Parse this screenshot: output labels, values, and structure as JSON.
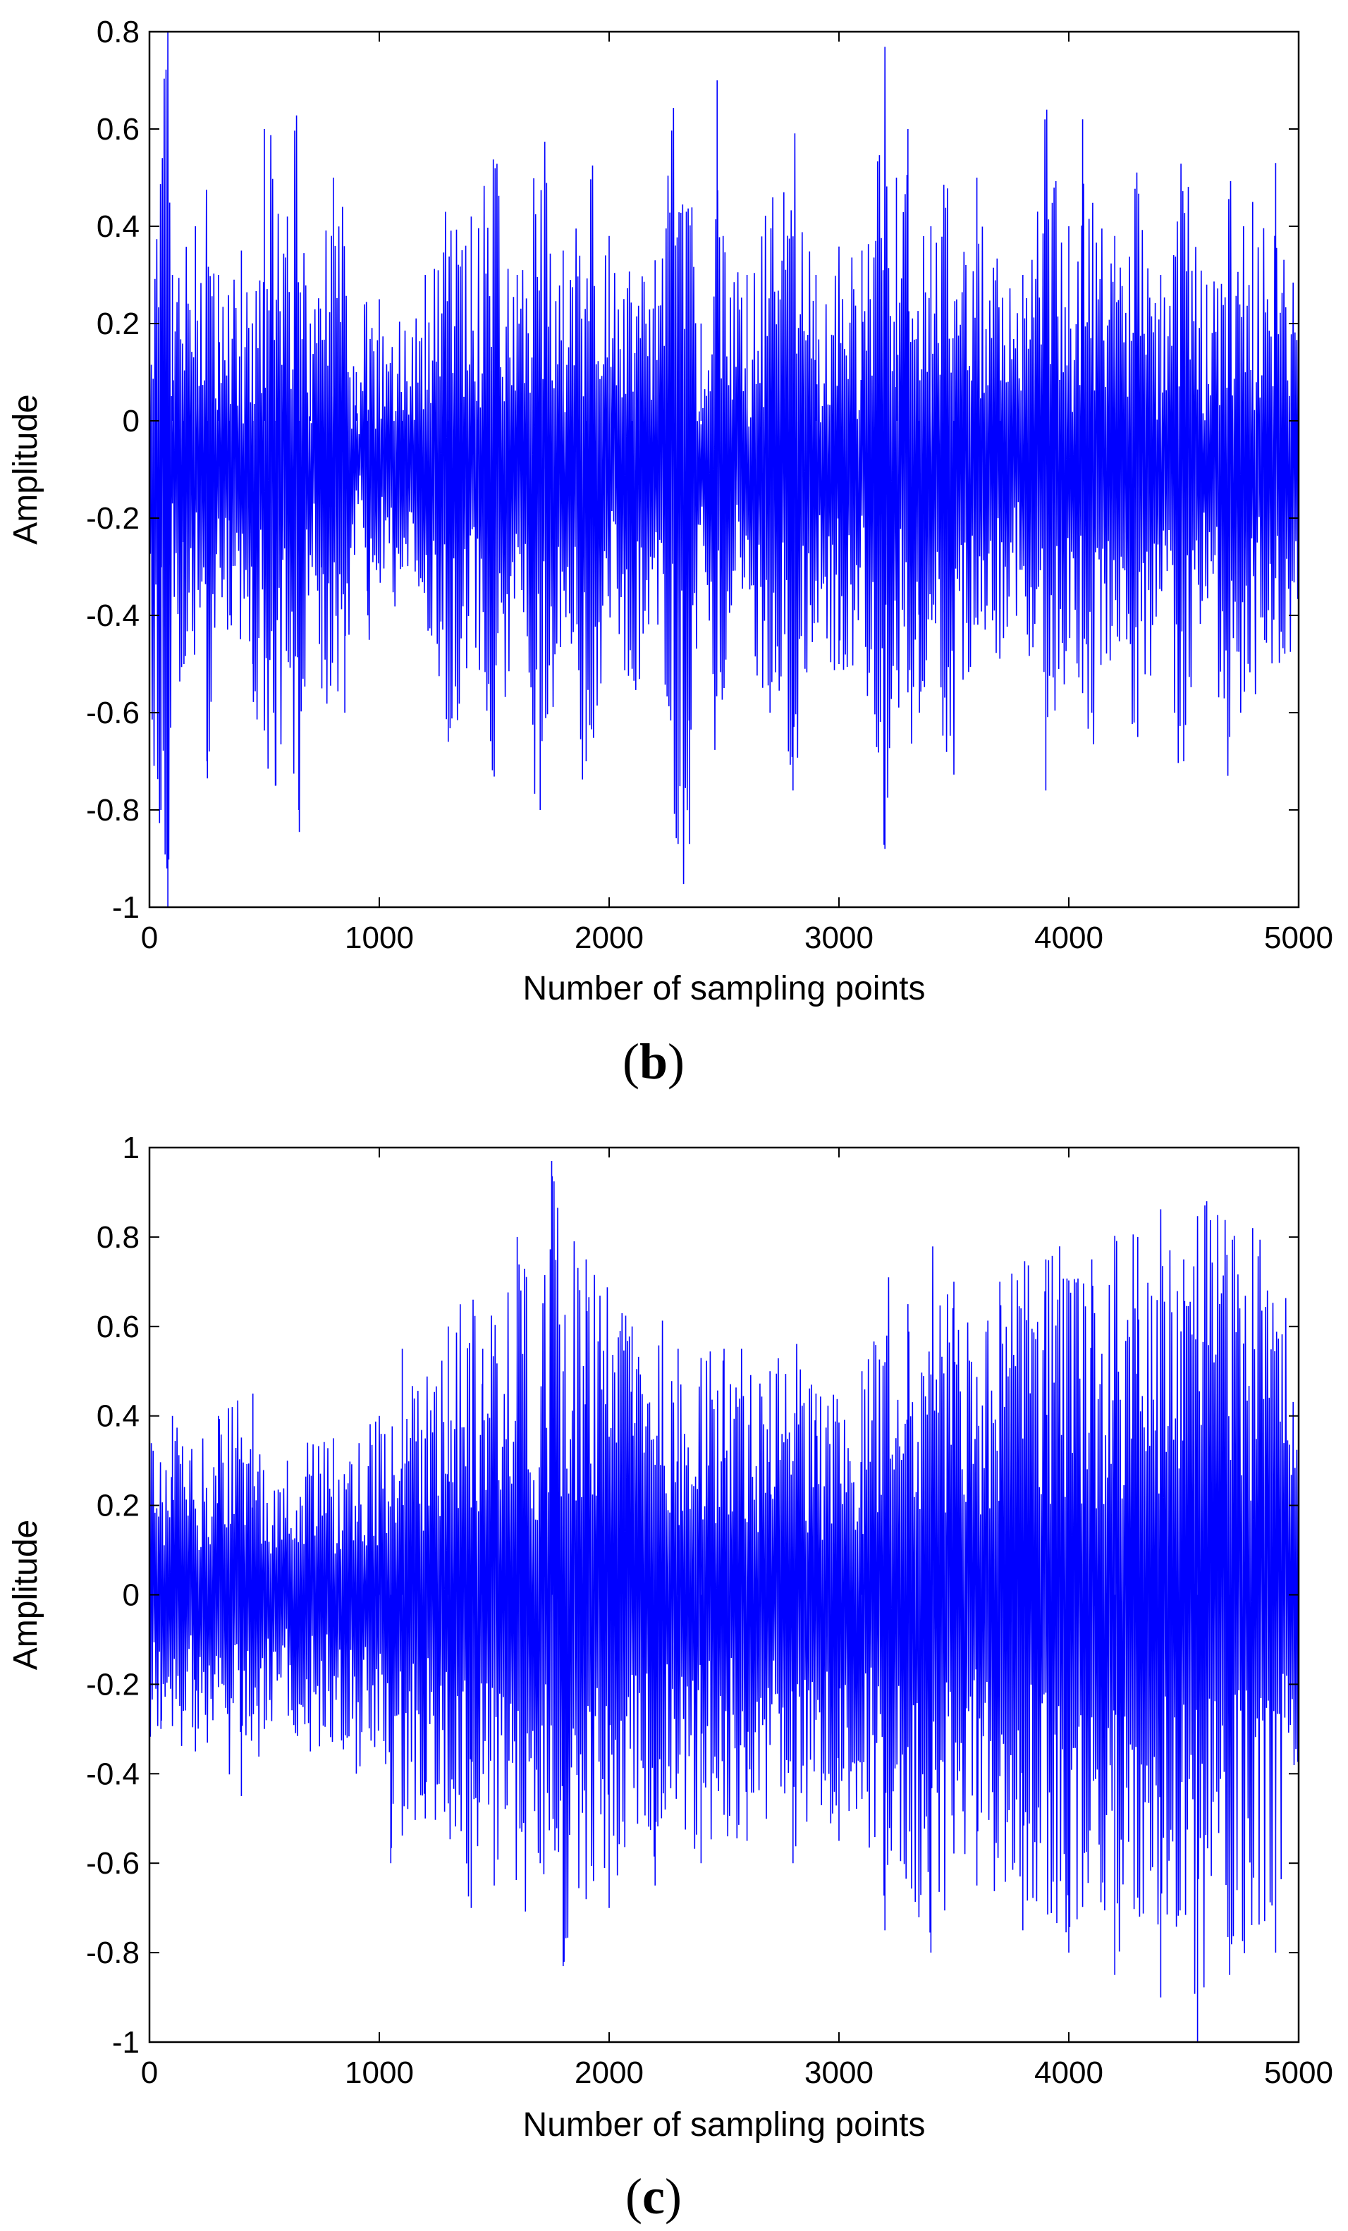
{
  "chart_data": [
    {
      "type": "line",
      "panel_label": {
        "open": "(",
        "letter": "b",
        "close": ")"
      },
      "xlabel": "Number of sampling points",
      "ylabel": "Amplitude",
      "xlim": [
        0,
        5000
      ],
      "ylim": [
        -1,
        0.8
      ],
      "x_ticks": [
        "0",
        "1000",
        "2000",
        "3000",
        "4000",
        "5000"
      ],
      "y_ticks": [
        "-1",
        "-0.8",
        "-0.6",
        "-0.4",
        "-0.2",
        "0",
        "0.2",
        "0.4",
        "0.6",
        "0.8"
      ],
      "x_tick_values": [
        0,
        1000,
        2000,
        3000,
        4000,
        5000
      ],
      "y_tick_values": [
        -1,
        -0.8,
        -0.6,
        -0.4,
        -0.2,
        0,
        0.2,
        0.4,
        0.6,
        0.8
      ],
      "grid": false,
      "line_color": "#0000ff",
      "series": [
        {
          "x": [
            0,
            50,
            80,
            100,
            150,
            200,
            250,
            300,
            350,
            400,
            450,
            500,
            550,
            600,
            650,
            700,
            750,
            800,
            850,
            900,
            950,
            1000,
            1100,
            1200,
            1300,
            1400,
            1500,
            1600,
            1700,
            1800,
            1900,
            2000,
            2100,
            2200,
            2300,
            2350,
            2400,
            2470,
            2500,
            2600,
            2700,
            2760,
            2800,
            2900,
            3000,
            3100,
            3200,
            3250,
            3300,
            3350,
            3400,
            3500,
            3600,
            3700,
            3800,
            3900,
            4000,
            4060,
            4100,
            4200,
            4300,
            4400,
            4500,
            4600,
            4700,
            4800,
            4900,
            5000
          ],
          "y": [
            -0.6,
            -0.8,
            -1.0,
            0.3,
            -0.5,
            0.4,
            -0.7,
            0.3,
            -0.4,
            0.35,
            -0.5,
            0.6,
            -0.75,
            0.42,
            -0.8,
            0.2,
            -0.55,
            0.5,
            -0.6,
            0.1,
            -0.4,
            0.25,
            -0.3,
            0.3,
            -0.66,
            0.42,
            -0.7,
            0.3,
            -0.8,
            0.35,
            -0.7,
            0.38,
            -0.5,
            0.33,
            -0.87,
            -0.87,
            0.2,
            0.7,
            -0.5,
            0.3,
            -0.6,
            0.47,
            -0.76,
            0.3,
            -0.5,
            0.35,
            -0.88,
            0.5,
            0.6,
            -0.6,
            0.4,
            -0.7,
            0.5,
            -0.4,
            0.3,
            -0.76,
            0.4,
            0.62,
            -0.6,
            0.38,
            -0.65,
            0.3,
            -0.7,
            0.28,
            -0.65,
            0.45,
            0.53,
            -0.4
          ]
        }
      ]
    },
    {
      "type": "line",
      "panel_label": {
        "open": "(",
        "letter": "c",
        "close": ")"
      },
      "xlabel": "Number of sampling points",
      "ylabel": "Amplitude",
      "xlim": [
        0,
        5000
      ],
      "ylim": [
        -1,
        1
      ],
      "x_ticks": [
        "0",
        "1000",
        "2000",
        "3000",
        "4000",
        "5000"
      ],
      "y_ticks": [
        "-1",
        "-0.8",
        "-0.6",
        "-0.4",
        "-0.2",
        "0",
        "0.2",
        "0.4",
        "0.6",
        "0.8",
        "1"
      ],
      "x_tick_values": [
        0,
        1000,
        2000,
        3000,
        4000,
        5000
      ],
      "y_tick_values": [
        -1,
        -0.8,
        -0.6,
        -0.4,
        -0.2,
        0,
        0.2,
        0.4,
        0.6,
        0.8,
        1
      ],
      "grid": false,
      "line_color": "#0000ff",
      "series": [
        {
          "x": [
            0,
            50,
            100,
            200,
            300,
            400,
            450,
            500,
            600,
            700,
            800,
            900,
            1000,
            1050,
            1100,
            1200,
            1300,
            1400,
            1450,
            1500,
            1600,
            1700,
            1750,
            1800,
            1900,
            2000,
            2100,
            2200,
            2300,
            2400,
            2500,
            2600,
            2700,
            2800,
            2900,
            3000,
            3100,
            3200,
            3300,
            3400,
            3500,
            3600,
            3700,
            3800,
            3900,
            4000,
            4100,
            4200,
            4300,
            4400,
            4500,
            4560,
            4600,
            4700,
            4800,
            4900,
            5000
          ],
          "y": [
            0.45,
            -0.3,
            0.4,
            -0.35,
            0.4,
            -0.45,
            0.45,
            -0.3,
            0.3,
            -0.35,
            0.35,
            -0.4,
            0.4,
            -0.6,
            0.55,
            -0.5,
            0.6,
            -0.7,
            0.55,
            -0.65,
            0.8,
            -0.6,
            0.97,
            -0.83,
            0.75,
            -0.7,
            0.6,
            -0.65,
            0.55,
            -0.6,
            0.55,
            -0.55,
            0.5,
            -0.6,
            0.45,
            -0.55,
            0.5,
            -0.75,
            0.65,
            -0.8,
            0.7,
            -0.65,
            0.7,
            -0.75,
            0.75,
            -0.8,
            0.75,
            -0.85,
            0.8,
            -0.9,
            0.75,
            -1.0,
            0.88,
            -0.85,
            0.82,
            -0.8,
            0.5
          ]
        }
      ]
    }
  ]
}
